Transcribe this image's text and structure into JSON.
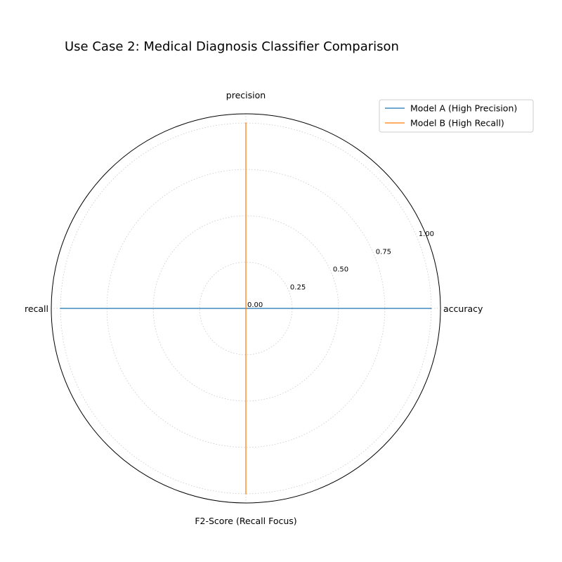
{
  "chart_data": {
    "type": "radar",
    "title": "Use Case 2: Medical Diagnosis Classifier Comparison",
    "axes": [
      "accuracy",
      "precision",
      "recall",
      "F2-Score (Recall Focus)"
    ],
    "rlim": [
      0,
      1.05
    ],
    "rticks": [
      0.0,
      0.25,
      0.5,
      0.75,
      1.0
    ],
    "rtick_labels": [
      "0.00",
      "0.25",
      "0.50",
      "0.75",
      "1.00"
    ],
    "grid": true,
    "legend_position": "top-right",
    "series": [
      {
        "name": "Model A (High Precision)",
        "color": "#1f77b4",
        "values": [
          1.0,
          0.0,
          1.0,
          0.0
        ]
      },
      {
        "name": "Model B (High Recall)",
        "color": "#ff7f0e",
        "values": [
          0.0,
          1.0,
          0.0,
          1.0
        ]
      }
    ]
  }
}
